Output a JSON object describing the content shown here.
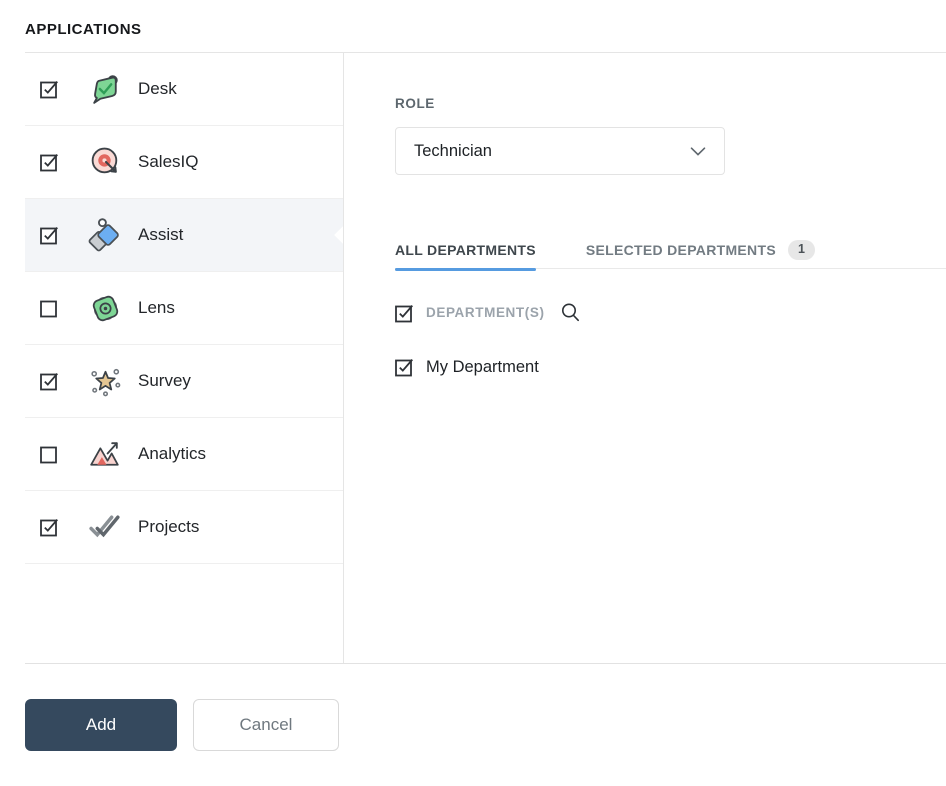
{
  "header": {
    "title": "APPLICATIONS"
  },
  "applications": [
    {
      "name": "Desk",
      "icon": "desk-icon",
      "checked": true,
      "selected": false
    },
    {
      "name": "SalesIQ",
      "icon": "salesiq-icon",
      "checked": true,
      "selected": false
    },
    {
      "name": "Assist",
      "icon": "assist-icon",
      "checked": true,
      "selected": true
    },
    {
      "name": "Lens",
      "icon": "lens-icon",
      "checked": false,
      "selected": false
    },
    {
      "name": "Survey",
      "icon": "survey-icon",
      "checked": true,
      "selected": false
    },
    {
      "name": "Analytics",
      "icon": "analytics-icon",
      "checked": false,
      "selected": false
    },
    {
      "name": "Projects",
      "icon": "projects-icon",
      "checked": true,
      "selected": false
    }
  ],
  "role": {
    "label": "ROLE",
    "selected_value": "Technician"
  },
  "tabs": [
    {
      "label": "ALL DEPARTMENTS",
      "active": true
    },
    {
      "label": "SELECTED DEPARTMENTS",
      "active": false,
      "badge": "1"
    }
  ],
  "departments": {
    "header_label": "DEPARTMENT(S)",
    "header_checked": true,
    "items": [
      {
        "name": "My Department",
        "checked": true
      }
    ]
  },
  "footer": {
    "add_label": "Add",
    "cancel_label": "Cancel"
  },
  "ui_icons": [
    "search-icon",
    "chevron-down-icon",
    "checkbox"
  ],
  "colors": {
    "tab_active_underline": "#569be0",
    "primary_button": "#35495e",
    "selected_row_bg": "#f3f5f8",
    "badge_bg": "#e7e7e7"
  }
}
